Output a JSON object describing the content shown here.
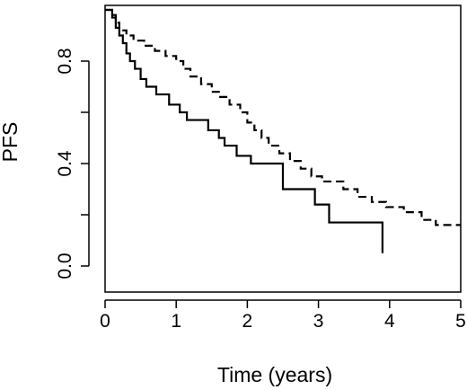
{
  "chart_data": {
    "type": "line",
    "title": "",
    "xlabel": "Time (years)",
    "ylabel": "PFS",
    "xlim": [
      0,
      5
    ],
    "ylim": [
      0,
      1
    ],
    "x_ticks": [
      0,
      1,
      2,
      3,
      4,
      5
    ],
    "x_tick_labels": [
      "0",
      "1",
      "2",
      "3",
      "4",
      "5"
    ],
    "y_ticks": [
      0.0,
      0.4,
      0.8
    ],
    "y_tick_labels": [
      "0.0",
      "0.4",
      "0.8"
    ],
    "grid": false,
    "legend": "none",
    "step": true,
    "series": [
      {
        "style": "solid",
        "color": "#000000",
        "x": [
          0,
          0.1,
          0.15,
          0.2,
          0.25,
          0.3,
          0.35,
          0.42,
          0.5,
          0.58,
          0.72,
          0.9,
          1.05,
          1.15,
          1.45,
          1.6,
          1.68,
          1.85,
          2.05,
          2.5,
          2.95,
          3.15,
          3.9
        ],
        "y": [
          1.0,
          0.97,
          0.93,
          0.9,
          0.87,
          0.83,
          0.8,
          0.77,
          0.73,
          0.7,
          0.67,
          0.63,
          0.6,
          0.57,
          0.53,
          0.5,
          0.47,
          0.43,
          0.4,
          0.3,
          0.24,
          0.17,
          0.12
        ]
      },
      {
        "style": "dashed",
        "color": "#000000",
        "x": [
          0,
          0.1,
          0.15,
          0.2,
          0.3,
          0.4,
          0.55,
          0.7,
          0.85,
          1.0,
          1.1,
          1.2,
          1.35,
          1.5,
          1.6,
          1.75,
          1.9,
          2.0,
          2.1,
          2.2,
          2.3,
          2.45,
          2.6,
          2.75,
          2.9,
          3.05,
          3.35,
          3.55,
          3.75,
          3.95,
          4.2,
          4.45,
          4.65,
          5.0
        ],
        "y": [
          1.0,
          0.98,
          0.95,
          0.92,
          0.9,
          0.88,
          0.86,
          0.84,
          0.82,
          0.8,
          0.77,
          0.74,
          0.71,
          0.68,
          0.66,
          0.63,
          0.6,
          0.56,
          0.53,
          0.5,
          0.47,
          0.44,
          0.41,
          0.38,
          0.35,
          0.33,
          0.3,
          0.27,
          0.25,
          0.23,
          0.21,
          0.18,
          0.16,
          0.16
        ]
      }
    ]
  }
}
